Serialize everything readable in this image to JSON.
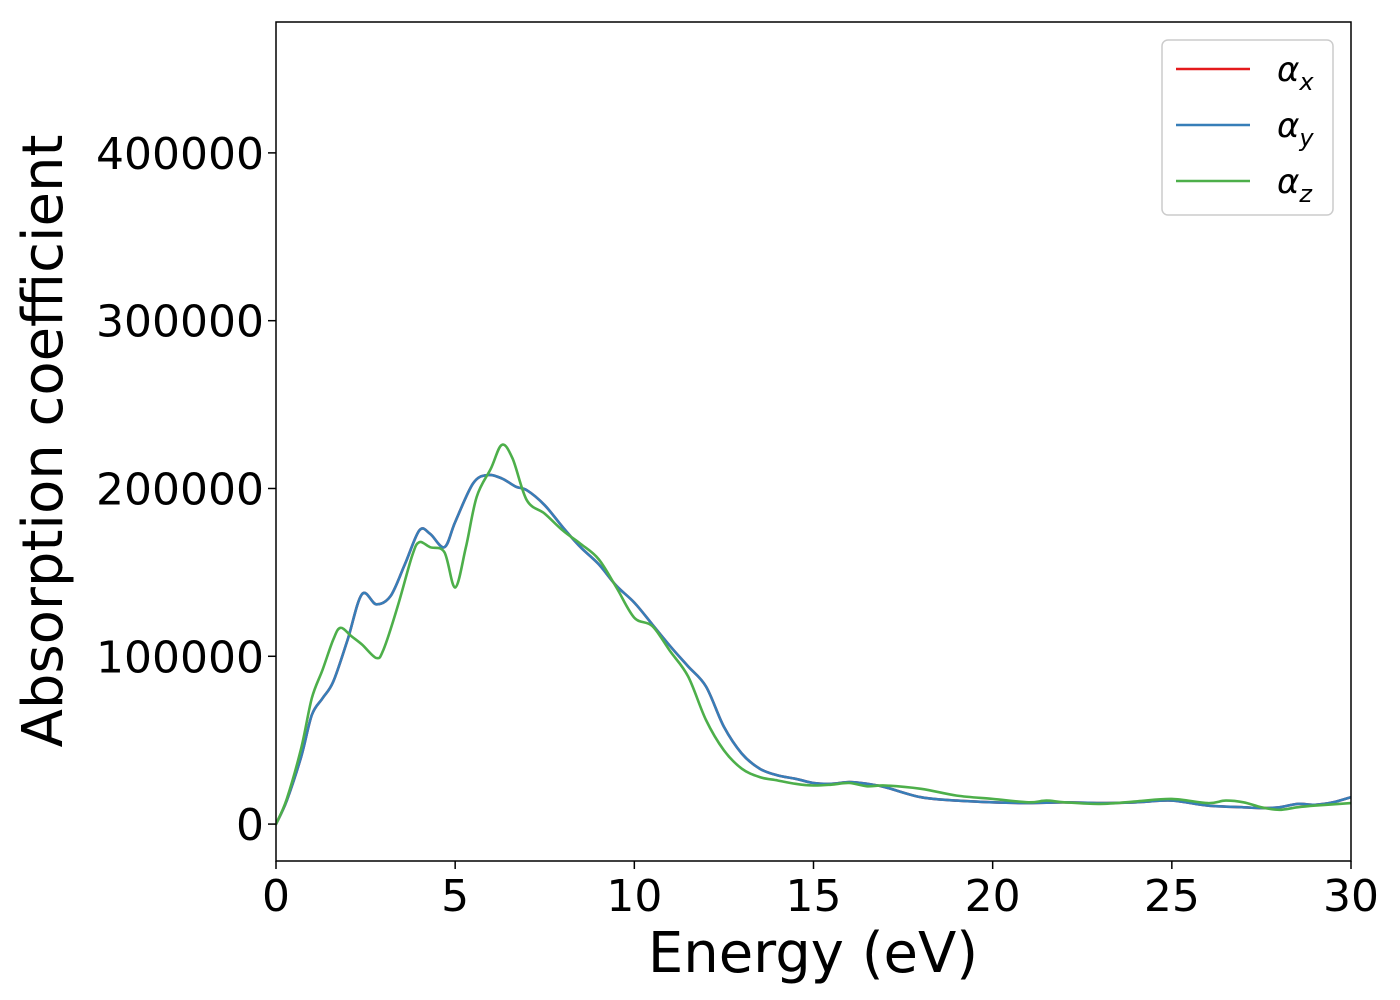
{
  "chart_data": {
    "type": "line",
    "xlabel": "Energy (eV)",
    "ylabel": "Absorption coefficient",
    "xlim": [
      0,
      30
    ],
    "ylim": [
      -22000,
      478000
    ],
    "x_ticks": [
      "0",
      "5",
      "10",
      "15",
      "20",
      "25",
      "30"
    ],
    "y_ticks": [
      "0",
      "100000",
      "200000",
      "300000",
      "400000"
    ],
    "grid": false,
    "legend_position": "top-right",
    "series": [
      {
        "name": "α_x",
        "label_main": "α",
        "label_sub": "x",
        "color": "#e41a1c",
        "points": [
          [
            0,
            0
          ],
          [
            0.3,
            14000
          ],
          [
            0.7,
            40000
          ],
          [
            1.0,
            65000
          ],
          [
            1.3,
            75000
          ],
          [
            1.6,
            85000
          ],
          [
            2.0,
            110000
          ],
          [
            2.4,
            137000
          ],
          [
            2.8,
            131000
          ],
          [
            3.2,
            136000
          ],
          [
            3.6,
            155000
          ],
          [
            4.0,
            175000
          ],
          [
            4.3,
            173000
          ],
          [
            4.7,
            165000
          ],
          [
            5.0,
            180000
          ],
          [
            5.5,
            203000
          ],
          [
            5.9,
            208000
          ],
          [
            6.3,
            206000
          ],
          [
            6.7,
            201000
          ],
          [
            7.0,
            199000
          ],
          [
            7.5,
            190000
          ],
          [
            8.0,
            177000
          ],
          [
            8.5,
            165000
          ],
          [
            9.0,
            155000
          ],
          [
            9.5,
            142000
          ],
          [
            10.0,
            132000
          ],
          [
            10.5,
            119000
          ],
          [
            11.0,
            106000
          ],
          [
            11.5,
            94000
          ],
          [
            12.0,
            82000
          ],
          [
            12.5,
            58000
          ],
          [
            13.0,
            42000
          ],
          [
            13.5,
            33000
          ],
          [
            14.0,
            29000
          ],
          [
            14.5,
            27000
          ],
          [
            15.0,
            24500
          ],
          [
            15.5,
            24000
          ],
          [
            16.0,
            25000
          ],
          [
            16.5,
            24000
          ],
          [
            17.0,
            22000
          ],
          [
            18.0,
            16000
          ],
          [
            19.0,
            14000
          ],
          [
            20.0,
            13000
          ],
          [
            21.0,
            12500
          ],
          [
            22.0,
            13000
          ],
          [
            23.0,
            12500
          ],
          [
            24.0,
            13000
          ],
          [
            25.0,
            14000
          ],
          [
            26.0,
            11000
          ],
          [
            27.0,
            10000
          ],
          [
            27.5,
            9500
          ],
          [
            28.0,
            10000
          ],
          [
            28.5,
            12000
          ],
          [
            29.0,
            11500
          ],
          [
            29.5,
            13000
          ],
          [
            30.0,
            16000
          ]
        ]
      },
      {
        "name": "α_y",
        "label_main": "α",
        "label_sub": "y",
        "color": "#377eb8",
        "points": [
          [
            0,
            0
          ],
          [
            0.3,
            14000
          ],
          [
            0.7,
            40000
          ],
          [
            1.0,
            65000
          ],
          [
            1.3,
            75000
          ],
          [
            1.6,
            85000
          ],
          [
            2.0,
            110000
          ],
          [
            2.4,
            137000
          ],
          [
            2.8,
            131000
          ],
          [
            3.2,
            136000
          ],
          [
            3.6,
            155000
          ],
          [
            4.0,
            175000
          ],
          [
            4.3,
            173000
          ],
          [
            4.7,
            165000
          ],
          [
            5.0,
            180000
          ],
          [
            5.5,
            203000
          ],
          [
            5.9,
            208000
          ],
          [
            6.3,
            206000
          ],
          [
            6.7,
            201000
          ],
          [
            7.0,
            199000
          ],
          [
            7.5,
            190000
          ],
          [
            8.0,
            177000
          ],
          [
            8.5,
            165000
          ],
          [
            9.0,
            155000
          ],
          [
            9.5,
            142000
          ],
          [
            10.0,
            132000
          ],
          [
            10.5,
            119000
          ],
          [
            11.0,
            106000
          ],
          [
            11.5,
            94000
          ],
          [
            12.0,
            82000
          ],
          [
            12.5,
            58000
          ],
          [
            13.0,
            42000
          ],
          [
            13.5,
            33000
          ],
          [
            14.0,
            29000
          ],
          [
            14.5,
            27000
          ],
          [
            15.0,
            24500
          ],
          [
            15.5,
            24000
          ],
          [
            16.0,
            25000
          ],
          [
            16.5,
            24000
          ],
          [
            17.0,
            22000
          ],
          [
            18.0,
            16000
          ],
          [
            19.0,
            14000
          ],
          [
            20.0,
            13000
          ],
          [
            21.0,
            12500
          ],
          [
            22.0,
            13000
          ],
          [
            23.0,
            12500
          ],
          [
            24.0,
            13000
          ],
          [
            25.0,
            14000
          ],
          [
            26.0,
            11000
          ],
          [
            27.0,
            10000
          ],
          [
            27.5,
            9500
          ],
          [
            28.0,
            10000
          ],
          [
            28.5,
            12000
          ],
          [
            29.0,
            11500
          ],
          [
            29.5,
            13000
          ],
          [
            30.0,
            16000
          ]
        ]
      },
      {
        "name": "α_z",
        "label_main": "α",
        "label_sub": "z",
        "color": "#4daf4a",
        "points": [
          [
            0,
            0
          ],
          [
            0.3,
            15000
          ],
          [
            0.7,
            45000
          ],
          [
            1.0,
            75000
          ],
          [
            1.3,
            92000
          ],
          [
            1.6,
            110000
          ],
          [
            1.8,
            117000
          ],
          [
            2.1,
            112000
          ],
          [
            2.4,
            107000
          ],
          [
            2.8,
            99000
          ],
          [
            3.0,
            104000
          ],
          [
            3.4,
            130000
          ],
          [
            3.8,
            160000
          ],
          [
            4.0,
            168000
          ],
          [
            4.3,
            165000
          ],
          [
            4.7,
            162000
          ],
          [
            5.0,
            141000
          ],
          [
            5.3,
            165000
          ],
          [
            5.6,
            195000
          ],
          [
            6.0,
            212000
          ],
          [
            6.3,
            226000
          ],
          [
            6.6,
            218000
          ],
          [
            7.0,
            193000
          ],
          [
            7.5,
            185000
          ],
          [
            8.0,
            175000
          ],
          [
            8.5,
            167000
          ],
          [
            9.0,
            158000
          ],
          [
            9.5,
            141000
          ],
          [
            10.0,
            123000
          ],
          [
            10.5,
            118000
          ],
          [
            11.0,
            103000
          ],
          [
            11.5,
            88000
          ],
          [
            12.0,
            62000
          ],
          [
            12.5,
            44000
          ],
          [
            13.0,
            33000
          ],
          [
            13.5,
            28000
          ],
          [
            14.0,
            26000
          ],
          [
            14.5,
            24000
          ],
          [
            15.0,
            23000
          ],
          [
            15.5,
            23500
          ],
          [
            16.0,
            24500
          ],
          [
            16.5,
            22500
          ],
          [
            17.0,
            23000
          ],
          [
            18.0,
            21000
          ],
          [
            19.0,
            17000
          ],
          [
            20.0,
            15000
          ],
          [
            21.0,
            13000
          ],
          [
            21.5,
            14000
          ],
          [
            22.0,
            13000
          ],
          [
            23.0,
            12000
          ],
          [
            24.0,
            13500
          ],
          [
            25.0,
            15000
          ],
          [
            26.0,
            12500
          ],
          [
            26.5,
            14000
          ],
          [
            27.0,
            13000
          ],
          [
            27.5,
            10000
          ],
          [
            28.0,
            8500
          ],
          [
            28.5,
            10000
          ],
          [
            29.0,
            11000
          ],
          [
            30.0,
            12500
          ]
        ]
      }
    ]
  }
}
